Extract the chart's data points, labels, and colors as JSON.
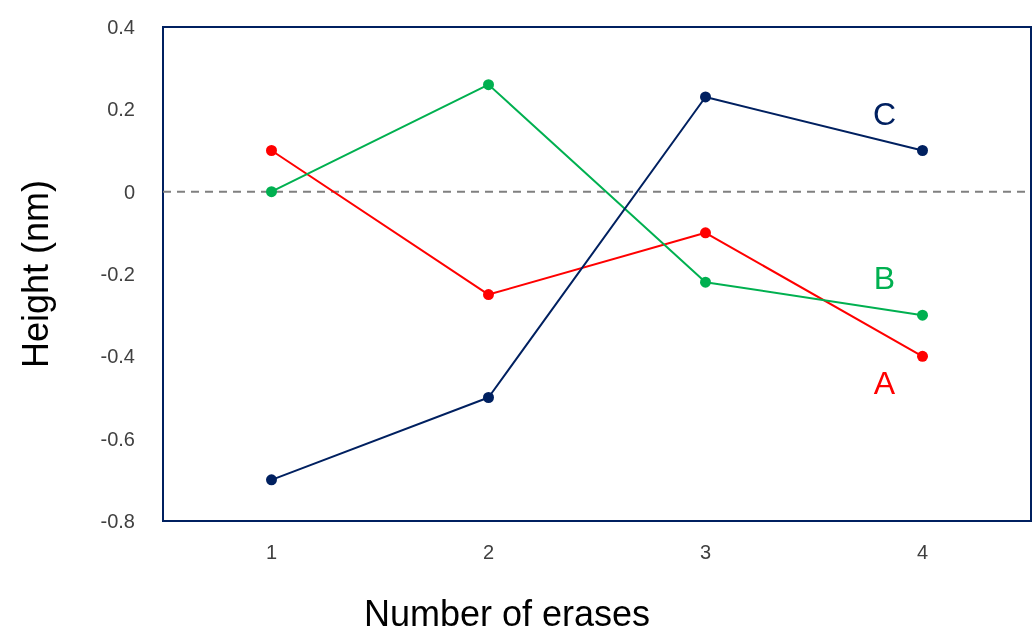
{
  "chart_data": {
    "type": "line",
    "xlabel": "Number of erases",
    "ylabel": "Height (nm)",
    "x": [
      1,
      2,
      3,
      4
    ],
    "xlim": [
      0.5,
      4.5
    ],
    "xticks": [
      1,
      2,
      3,
      4
    ],
    "ylim": [
      -0.8,
      0.4
    ],
    "yticks": [
      -0.8,
      -0.6,
      -0.4,
      -0.2,
      0,
      0.2,
      0.4
    ],
    "series": [
      {
        "name": "A",
        "color": "#ff0000",
        "values": [
          0.1,
          -0.25,
          -0.1,
          -0.4
        ]
      },
      {
        "name": "B",
        "color": "#00b050",
        "values": [
          0,
          0.26,
          -0.22,
          -0.3
        ]
      },
      {
        "name": "C",
        "color": "#002060",
        "values": [
          -0.7,
          -0.5,
          0.23,
          0.1
        ]
      }
    ],
    "ref_lines": [
      {
        "axis": "y",
        "value": 0,
        "color": "#808080",
        "line_style": "dashed"
      }
    ],
    "grid": false,
    "marker": "circle",
    "line_style": "solid"
  }
}
